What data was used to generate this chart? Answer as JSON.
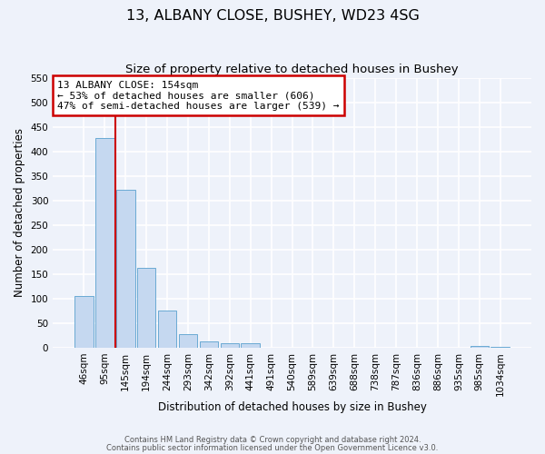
{
  "title": "13, ALBANY CLOSE, BUSHEY, WD23 4SG",
  "subtitle": "Size of property relative to detached houses in Bushey",
  "xlabel": "Distribution of detached houses by size in Bushey",
  "ylabel": "Number of detached properties",
  "bin_labels": [
    "46sqm",
    "95sqm",
    "145sqm",
    "194sqm",
    "244sqm",
    "293sqm",
    "342sqm",
    "392sqm",
    "441sqm",
    "491sqm",
    "540sqm",
    "589sqm",
    "639sqm",
    "688sqm",
    "738sqm",
    "787sqm",
    "836sqm",
    "886sqm",
    "935sqm",
    "985sqm",
    "1034sqm"
  ],
  "bar_values": [
    105,
    428,
    322,
    163,
    75,
    27,
    13,
    10,
    9,
    0,
    0,
    0,
    0,
    0,
    0,
    0,
    0,
    0,
    0,
    3,
    2
  ],
  "bar_color": "#c5d8f0",
  "bar_edge_color": "#6aaad4",
  "ylim": [
    0,
    550
  ],
  "yticks": [
    0,
    50,
    100,
    150,
    200,
    250,
    300,
    350,
    400,
    450,
    500,
    550
  ],
  "vline_color": "#cc0000",
  "annotation_title": "13 ALBANY CLOSE: 154sqm",
  "annotation_line1": "← 53% of detached houses are smaller (606)",
  "annotation_line2": "47% of semi-detached houses are larger (539) →",
  "annotation_box_color": "#cc0000",
  "footer1": "Contains HM Land Registry data © Crown copyright and database right 2024.",
  "footer2": "Contains public sector information licensed under the Open Government Licence v3.0.",
  "background_color": "#eef2fa",
  "grid_color": "#ffffff",
  "title_fontsize": 11.5,
  "subtitle_fontsize": 9.5,
  "axis_label_fontsize": 8.5,
  "tick_fontsize": 7.5,
  "annotation_fontsize": 8.0,
  "footer_fontsize": 6.0
}
